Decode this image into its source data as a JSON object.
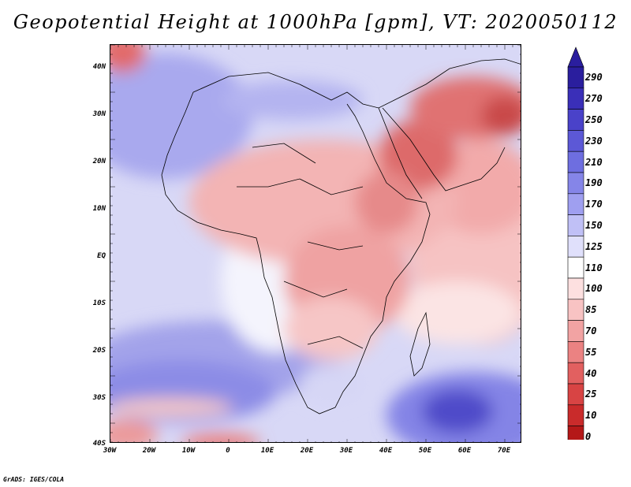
{
  "title": "Geopotential Height at 1000hPa [gpm], VT: 2020050112",
  "map": {
    "region": "Africa and Middle East",
    "lat_labels": [
      "40N",
      "30N",
      "20N",
      "10N",
      "EQ",
      "10S",
      "20S",
      "30S",
      "40S"
    ],
    "lon_labels": [
      "30W",
      "20W",
      "10W",
      "0",
      "10E",
      "20E",
      "30E",
      "40E",
      "50E",
      "60E",
      "70E"
    ]
  },
  "colorbar": {
    "labels": [
      "290",
      "270",
      "250",
      "230",
      "210",
      "190",
      "170",
      "150",
      "125",
      "110",
      "100",
      "85",
      "70",
      "55",
      "40",
      "25",
      "10",
      "0"
    ],
    "colors": [
      "#2a1e9e",
      "#3a2fb8",
      "#4a42c9",
      "#5c58d6",
      "#6e6ee0",
      "#8585e8",
      "#9f9ff0",
      "#c0c0f6",
      "#e0e0fb",
      "#ffffff",
      "#fde0e0",
      "#f8c3c3",
      "#f2a3a3",
      "#eb8282",
      "#e26060",
      "#d84444",
      "#c92b2b",
      "#b41818"
    ]
  },
  "credit": "GrADS: IGES/COLA"
}
